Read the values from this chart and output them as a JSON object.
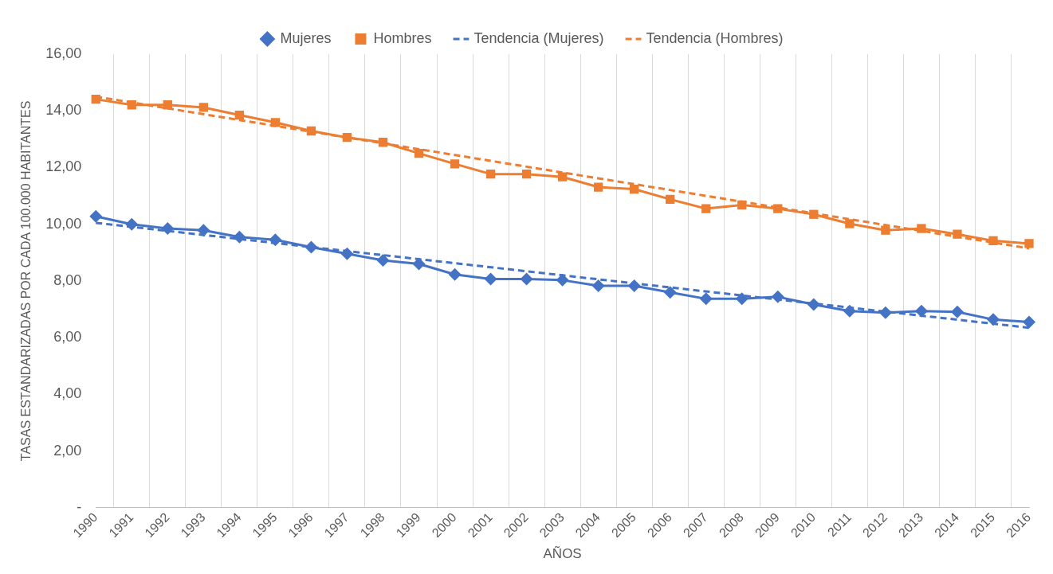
{
  "chart_data": {
    "type": "line",
    "xlabel": "AÑOS",
    "ylabel": "TASAS ESTANDARIZADAS POR CADA 100.000 HABITANTES",
    "categories": [
      "1990",
      "1991",
      "1992",
      "1993",
      "1994",
      "1995",
      "1996",
      "1997",
      "1998",
      "1999",
      "2000",
      "2001",
      "2002",
      "2003",
      "2004",
      "2005",
      "2006",
      "2007",
      "2008",
      "2009",
      "2010",
      "2011",
      "2012",
      "2013",
      "2014",
      "2015",
      "2016"
    ],
    "series": [
      {
        "name": "Mujeres",
        "color": "#4472c4",
        "marker": "diamond",
        "line_style": "solid",
        "values": [
          10.28,
          10.0,
          9.85,
          9.79,
          9.55,
          9.45,
          9.19,
          8.96,
          8.73,
          8.6,
          8.23,
          8.07,
          8.07,
          8.03,
          7.83,
          7.83,
          7.6,
          7.37,
          7.37,
          7.44,
          7.17,
          6.94,
          6.88,
          6.94,
          6.91,
          6.64,
          6.55
        ]
      },
      {
        "name": "Hombres",
        "color": "#ed7d31",
        "marker": "square",
        "line_style": "solid",
        "values": [
          14.41,
          14.21,
          14.21,
          14.12,
          13.85,
          13.59,
          13.29,
          13.06,
          12.89,
          12.5,
          12.13,
          11.77,
          11.77,
          11.67,
          11.31,
          11.24,
          10.88,
          10.55,
          10.68,
          10.55,
          10.35,
          10.02,
          9.79,
          9.85,
          9.65,
          9.42,
          9.32
        ]
      },
      {
        "name": "Tendencia (Mujeres)",
        "color": "#4472c4",
        "marker": "none",
        "line_style": "dashed",
        "values": [
          10.05,
          null,
          null,
          null,
          null,
          null,
          null,
          null,
          null,
          null,
          null,
          null,
          null,
          null,
          null,
          null,
          null,
          null,
          null,
          null,
          null,
          null,
          null,
          null,
          null,
          null,
          6.35
        ]
      },
      {
        "name": "Tendencia (Hombres)",
        "color": "#ed7d31",
        "marker": "none",
        "line_style": "dashed",
        "values": [
          14.5,
          null,
          null,
          null,
          null,
          null,
          null,
          null,
          null,
          null,
          null,
          null,
          null,
          null,
          null,
          null,
          null,
          null,
          null,
          null,
          null,
          null,
          null,
          null,
          null,
          null,
          9.15
        ]
      }
    ],
    "ylim": [
      0,
      16
    ],
    "yticks": [
      {
        "value": 0,
        "label": "-"
      },
      {
        "value": 2,
        "label": "2,00"
      },
      {
        "value": 4,
        "label": "4,00"
      },
      {
        "value": 6,
        "label": "6,00"
      },
      {
        "value": 8,
        "label": "8,00"
      },
      {
        "value": 10,
        "label": "10,00"
      },
      {
        "value": 12,
        "label": "12,00"
      },
      {
        "value": 14,
        "label": "14,00"
      },
      {
        "value": 16,
        "label": "16,00"
      }
    ],
    "grid": "x",
    "legend": "top"
  }
}
